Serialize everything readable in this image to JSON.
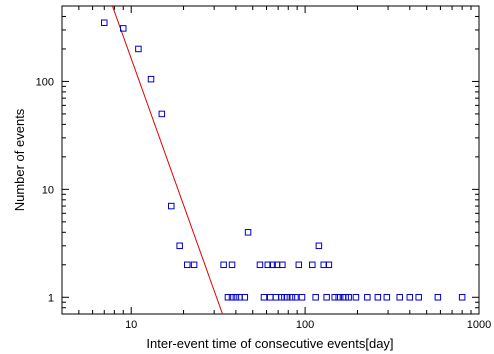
{
  "chart_data": {
    "type": "scatter",
    "xlabel": "Inter-event time of consecutive events[day]",
    "ylabel": "Number of events",
    "x_scale": "log",
    "y_scale": "log",
    "xlim": [
      4,
      1000
    ],
    "ylim": [
      0.7,
      500
    ],
    "x_ticks": [
      {
        "value": 10,
        "label": "10"
      },
      {
        "value": 100,
        "label": "100"
      },
      {
        "value": 1000,
        "label": "1000"
      }
    ],
    "y_ticks": [
      {
        "value": 1,
        "label": "1"
      },
      {
        "value": 10,
        "label": "10"
      },
      {
        "value": 100,
        "label": "100"
      }
    ],
    "grid": false,
    "marker_color": "#0000cc",
    "fit_line_color": "#e00000",
    "series": [
      {
        "values": [
          {
            "x": 7.0,
            "y": 350
          },
          {
            "x": 9.0,
            "y": 310
          },
          {
            "x": 11.0,
            "y": 200
          },
          {
            "x": 13.0,
            "y": 105
          },
          {
            "x": 15.0,
            "y": 50
          },
          {
            "x": 17.0,
            "y": 7
          },
          {
            "x": 19.0,
            "y": 3
          },
          {
            "x": 21.0,
            "y": 2
          },
          {
            "x": 23.0,
            "y": 2
          },
          {
            "x": 34.0,
            "y": 2
          },
          {
            "x": 38.0,
            "y": 2
          },
          {
            "x": 47.0,
            "y": 4
          },
          {
            "x": 55.0,
            "y": 2
          },
          {
            "x": 61.0,
            "y": 2
          },
          {
            "x": 65.0,
            "y": 2
          },
          {
            "x": 69.0,
            "y": 2
          },
          {
            "x": 74.0,
            "y": 2
          },
          {
            "x": 92.0,
            "y": 2
          },
          {
            "x": 110.0,
            "y": 2
          },
          {
            "x": 120.0,
            "y": 3
          },
          {
            "x": 128.0,
            "y": 2
          },
          {
            "x": 137.0,
            "y": 2
          },
          {
            "x": 36.0,
            "y": 1
          },
          {
            "x": 38.0,
            "y": 1
          },
          {
            "x": 40.0,
            "y": 1
          },
          {
            "x": 42.0,
            "y": 1
          },
          {
            "x": 45.0,
            "y": 1
          },
          {
            "x": 58.0,
            "y": 1
          },
          {
            "x": 63.0,
            "y": 1
          },
          {
            "x": 68.0,
            "y": 1
          },
          {
            "x": 73.0,
            "y": 1
          },
          {
            "x": 76.0,
            "y": 1
          },
          {
            "x": 79.0,
            "y": 1
          },
          {
            "x": 84.0,
            "y": 1
          },
          {
            "x": 88.0,
            "y": 1
          },
          {
            "x": 96.0,
            "y": 1
          },
          {
            "x": 115.0,
            "y": 1
          },
          {
            "x": 133.0,
            "y": 1
          },
          {
            "x": 148.0,
            "y": 1
          },
          {
            "x": 156.0,
            "y": 1
          },
          {
            "x": 165.0,
            "y": 1
          },
          {
            "x": 171.0,
            "y": 1
          },
          {
            "x": 178.0,
            "y": 1
          },
          {
            "x": 196.0,
            "y": 1
          },
          {
            "x": 228.0,
            "y": 1
          },
          {
            "x": 262.0,
            "y": 1
          },
          {
            "x": 295.0,
            "y": 1
          },
          {
            "x": 350.0,
            "y": 1
          },
          {
            "x": 400.0,
            "y": 1
          },
          {
            "x": 450.0,
            "y": 1
          },
          {
            "x": 580.0,
            "y": 1
          },
          {
            "x": 800.0,
            "y": 1
          }
        ]
      }
    ],
    "fit_line": [
      {
        "x": 7.8,
        "y": 500
      },
      {
        "x": 33.5,
        "y": 0.7
      }
    ]
  }
}
